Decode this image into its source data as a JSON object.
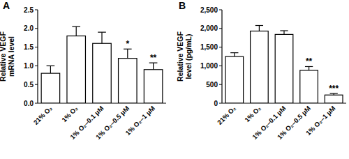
{
  "chart_data": [
    {
      "type": "bar",
      "title": "A",
      "y_label": "Relative VEGF\nmRNA level",
      "categories": [
        "21% O₂",
        "1% O₂",
        "1% O₂–0.1 μM",
        "1% O₂–0.5 μM",
        "1% O₂–1 μM"
      ],
      "values": [
        0.8,
        1.8,
        1.6,
        1.2,
        0.9
      ],
      "errors": [
        0.2,
        0.25,
        0.3,
        0.25,
        0.18
      ],
      "annotations": [
        null,
        null,
        null,
        "*",
        "**"
      ],
      "color": "#ffffff",
      "ylim": [
        0,
        2.5
      ],
      "yticks": [
        {
          "value": 0,
          "label": "0.0"
        },
        {
          "value": 0.5,
          "label": "0.5"
        },
        {
          "value": 1,
          "label": "1.0"
        },
        {
          "value": 1.5,
          "label": "1.5"
        },
        {
          "value": 2,
          "label": "2.0"
        },
        {
          "value": 2.5,
          "label": "2.5"
        }
      ],
      "grid": false
    },
    {
      "type": "bar",
      "title": "B",
      "y_label": "Relative VEGF\nlevel (pg/mL)",
      "categories": [
        "21% O₂",
        "1% O₂",
        "1% O₂–0.1 μM",
        "1% O₂–0.5 μM",
        "1% O₂–1 μM"
      ],
      "values": [
        1250,
        1930,
        1840,
        880,
        220
      ],
      "errors": [
        100,
        150,
        100,
        100,
        40
      ],
      "annotations": [
        null,
        null,
        null,
        "**",
        "***"
      ],
      "color": "#ffffff",
      "ylim": [
        0,
        2500
      ],
      "yticks": [
        0,
        500,
        {
          "value": 1000,
          "label": "1,000"
        },
        {
          "value": 1500,
          "label": "1,500"
        },
        {
          "value": 2000,
          "label": "2,000"
        },
        {
          "value": 2500,
          "label": "2,500"
        }
      ],
      "grid": false
    }
  ]
}
